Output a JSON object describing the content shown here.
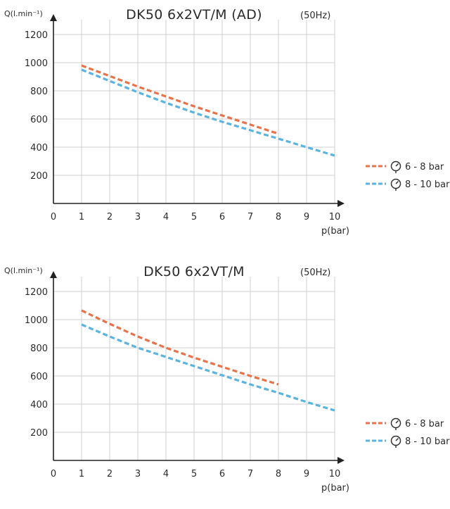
{
  "chart_data": [
    {
      "type": "line",
      "title": "DK50 6x2VT/M (AD)",
      "subtitle": "(50Hz)",
      "ylabel": "Q(l.min⁻¹)",
      "xlabel": "p(bar)",
      "xlim": [
        0,
        10
      ],
      "ylim": [
        0,
        1300
      ],
      "x_ticks": [
        "0",
        "1",
        "2",
        "3",
        "4",
        "5",
        "6",
        "7",
        "8",
        "9",
        "10"
      ],
      "y_ticks": [
        "200",
        "400",
        "600",
        "800",
        "1000",
        "1200"
      ],
      "grid": true,
      "legend_position": "right",
      "series": [
        {
          "name": "6 - 8 bar",
          "color": "#e8734a",
          "dash": "dashed",
          "points": [
            [
              1,
              980
            ],
            [
              2,
              905
            ],
            [
              3,
              830
            ],
            [
              4,
              760
            ],
            [
              5,
              690
            ],
            [
              6,
              625
            ],
            [
              7,
              560
            ],
            [
              8,
              495
            ]
          ]
        },
        {
          "name": "8 - 10 bar",
          "color": "#5ab4e0",
          "dash": "dashed",
          "points": [
            [
              1,
              950
            ],
            [
              2,
              870
            ],
            [
              3,
              790
            ],
            [
              4,
              715
            ],
            [
              5,
              645
            ],
            [
              6,
              580
            ],
            [
              7,
              520
            ],
            [
              8,
              460
            ],
            [
              9,
              400
            ],
            [
              10,
              340
            ]
          ]
        }
      ]
    },
    {
      "type": "line",
      "title": "DK50 6x2VT/M",
      "subtitle": "(50Hz)",
      "ylabel": "Q(l.min⁻¹)",
      "xlabel": "p(bar)",
      "xlim": [
        0,
        10
      ],
      "ylim": [
        0,
        1300
      ],
      "x_ticks": [
        "0",
        "1",
        "2",
        "3",
        "4",
        "5",
        "6",
        "7",
        "8",
        "9",
        "10"
      ],
      "y_ticks": [
        "200",
        "400",
        "600",
        "800",
        "1000",
        "1200"
      ],
      "grid": true,
      "legend_position": "right",
      "series": [
        {
          "name": "6 - 8 bar",
          "color": "#e8734a",
          "dash": "dashed",
          "points": [
            [
              1,
              1065
            ],
            [
              2,
              970
            ],
            [
              3,
              880
            ],
            [
              4,
              800
            ],
            [
              5,
              730
            ],
            [
              6,
              665
            ],
            [
              7,
              600
            ],
            [
              8,
              540
            ]
          ]
        },
        {
          "name": "8 - 10 bar",
          "color": "#5ab4e0",
          "dash": "dashed",
          "points": [
            [
              1,
              965
            ],
            [
              2,
              880
            ],
            [
              3,
              800
            ],
            [
              4,
              735
            ],
            [
              5,
              670
            ],
            [
              6,
              605
            ],
            [
              7,
              540
            ],
            [
              8,
              480
            ],
            [
              9,
              415
            ],
            [
              10,
              355
            ]
          ]
        }
      ]
    }
  ]
}
